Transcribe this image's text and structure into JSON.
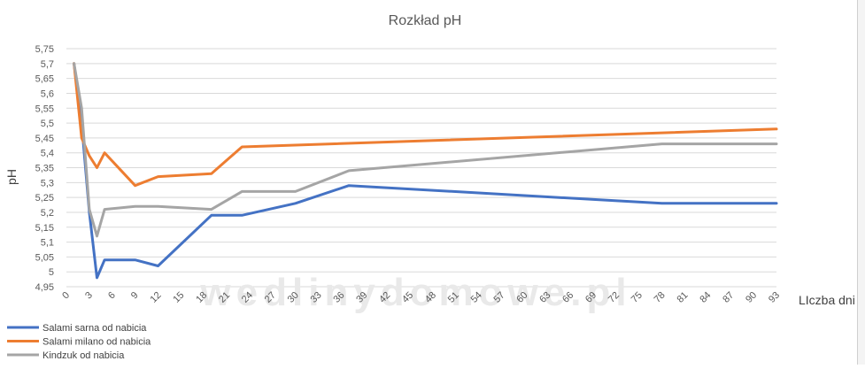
{
  "chart_data": {
    "type": "line",
    "title": "Rozkład pH",
    "xlabel": "LIczba dni",
    "ylabel": "pH",
    "xlim": [
      0,
      93
    ],
    "ylim": [
      4.95,
      5.75
    ],
    "x_ticks": [
      "0",
      "3",
      "6",
      "9",
      "12",
      "15",
      "18",
      "21",
      "24",
      "27",
      "30",
      "33",
      "36",
      "39",
      "42",
      "45",
      "48",
      "51",
      "54",
      "57",
      "60",
      "63",
      "66",
      "69",
      "72",
      "75",
      "78",
      "81",
      "84",
      "87",
      "90",
      "93"
    ],
    "y_ticks": [
      "4,95",
      "5",
      "5,05",
      "5,1",
      "5,15",
      "5,2",
      "5,25",
      "5,3",
      "5,35",
      "5,4",
      "5,45",
      "5,5",
      "5,55",
      "5,6",
      "5,65",
      "5,7",
      "5,75"
    ],
    "grid": true,
    "legend_position": "bottom-left",
    "series": [
      {
        "name": "Salami sarna od nabicia",
        "color": "#4472c4",
        "points": [
          [
            1,
            5.7
          ],
          [
            2,
            5.5
          ],
          [
            3,
            5.2
          ],
          [
            4,
            4.98
          ],
          [
            5,
            5.04
          ],
          [
            9,
            5.04
          ],
          [
            12,
            5.02
          ],
          [
            19,
            5.19
          ],
          [
            23,
            5.19
          ],
          [
            30,
            5.23
          ],
          [
            37,
            5.29
          ],
          [
            78,
            5.23
          ],
          [
            93,
            5.23
          ]
        ]
      },
      {
        "name": "Salami milano od nabicia",
        "color": "#ed7d31",
        "points": [
          [
            1,
            5.7
          ],
          [
            2,
            5.45
          ],
          [
            3,
            5.39
          ],
          [
            4,
            5.35
          ],
          [
            5,
            5.4
          ],
          [
            9,
            5.29
          ],
          [
            12,
            5.32
          ],
          [
            19,
            5.33
          ],
          [
            23,
            5.42
          ],
          [
            93,
            5.48
          ]
        ]
      },
      {
        "name": "Kindzuk  od nabicia",
        "color": "#a5a5a5",
        "points": [
          [
            1,
            5.7
          ],
          [
            2,
            5.55
          ],
          [
            3,
            5.21
          ],
          [
            4,
            5.12
          ],
          [
            5,
            5.21
          ],
          [
            9,
            5.22
          ],
          [
            12,
            5.22
          ],
          [
            19,
            5.21
          ],
          [
            23,
            5.27
          ],
          [
            30,
            5.27
          ],
          [
            37,
            5.34
          ],
          [
            78,
            5.43
          ],
          [
            93,
            5.43
          ]
        ]
      }
    ]
  },
  "watermark": "wedlinydomowe.pl"
}
